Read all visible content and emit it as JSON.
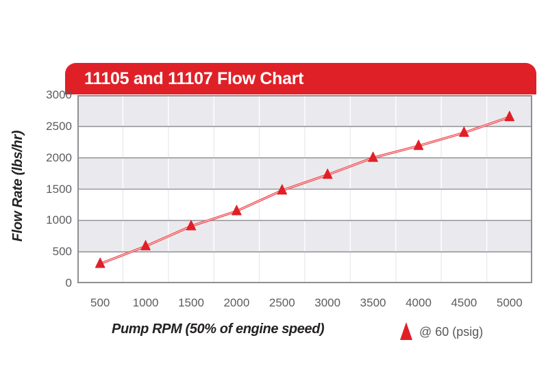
{
  "chart_data": {
    "type": "line",
    "title": "11105 and 11107 Flow Chart",
    "xlabel": "Pump RPM (50% of engine speed)",
    "ylabel": "Flow Rate (lbs/hr)",
    "x": [
      500,
      1000,
      1500,
      2000,
      2500,
      3000,
      3500,
      4000,
      4500,
      5000
    ],
    "series": [
      {
        "name": "@ 60 (psig)",
        "marker": "red-triangle-icon",
        "values": [
          310,
          590,
          910,
          1150,
          1480,
          1730,
          2000,
          2190,
          2400,
          2650
        ]
      }
    ],
    "ylim": [
      0,
      3000
    ],
    "ytick_interval": 500,
    "yticks": [
      0,
      500,
      1000,
      1500,
      2000,
      2500,
      3000
    ],
    "grid": "horizontal-bands-with-category-separators",
    "legend_position": "bottom-right"
  },
  "colors": {
    "accent_red": "#e02027",
    "line_red": "#ee4248",
    "line_core": "#f9cfd1",
    "band_gray": "#eaeaee",
    "band_white": "#ffffff",
    "vgrid_on_gray": "#ffffff",
    "vgrid_on_white": "#ebebef",
    "hgrid": "#97989c",
    "border": "#8d8f93",
    "tick_text": "#5b5c5f",
    "title_text": "#242122",
    "legend_text": "#57585b",
    "banner_text": "#ffffff"
  }
}
